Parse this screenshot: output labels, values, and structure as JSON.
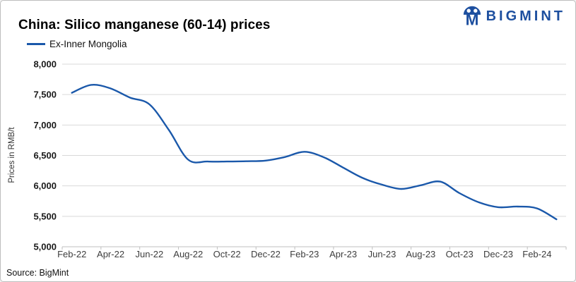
{
  "header": {
    "title": "China: Silico manganese (60-14) prices",
    "logo_text": "BIGMINT"
  },
  "legend": {
    "items": [
      {
        "label": "Ex-Inner Mongolia",
        "color": "#1a58aa"
      }
    ]
  },
  "footer": {
    "source": "Source: BigMint"
  },
  "colors": {
    "line": "#1a58aa",
    "logo_blue": "#1d4f9f",
    "gridline": "#d9d9d9",
    "axis": "#bfbfbf",
    "y_label_text": "#1a1a1a",
    "x_label_text": "#3d3d3d",
    "axis_title_text": "#333333"
  },
  "chart_data": {
    "type": "line",
    "title": "China: Silico manganese (60-14) prices",
    "xlabel": "",
    "ylabel": "Prices in RMB/t",
    "ylim": [
      5000,
      8000
    ],
    "yticks": [
      5000,
      5500,
      6000,
      6500,
      7000,
      7500,
      8000
    ],
    "ytick_labels": [
      "5,000",
      "5,500",
      "6,000",
      "6,500",
      "7,000",
      "7,500",
      "8,000"
    ],
    "x": [
      "Feb-22",
      "Mar-22",
      "Apr-22",
      "May-22",
      "Jun-22",
      "Jul-22",
      "Aug-22",
      "Sep-22",
      "Oct-22",
      "Nov-22",
      "Dec-22",
      "Jan-23",
      "Feb-23",
      "Mar-23",
      "Apr-23",
      "May-23",
      "Jun-23",
      "Jul-23",
      "Aug-23",
      "Sep-23",
      "Oct-23",
      "Nov-23",
      "Dec-23",
      "Jan-24",
      "Feb-24",
      "Mar-24"
    ],
    "xtick_labels": [
      "Feb-22",
      "Apr-22",
      "Jun-22",
      "Aug-22",
      "Oct-22",
      "Dec-22",
      "Feb-23",
      "Apr-23",
      "Jun-23",
      "Aug-23",
      "Oct-23",
      "Dec-23",
      "Feb-24"
    ],
    "grid": "horizontal",
    "legend_position": "top-left",
    "smooth": true,
    "series": [
      {
        "name": "Ex-Inner Mongolia",
        "color": "#1a58aa",
        "values": [
          7530,
          7660,
          7600,
          7450,
          7340,
          6920,
          6430,
          6400,
          6400,
          6405,
          6415,
          6475,
          6560,
          6470,
          6300,
          6130,
          6020,
          5950,
          6010,
          6070,
          5880,
          5730,
          5650,
          5660,
          5630,
          5450
        ]
      }
    ]
  }
}
